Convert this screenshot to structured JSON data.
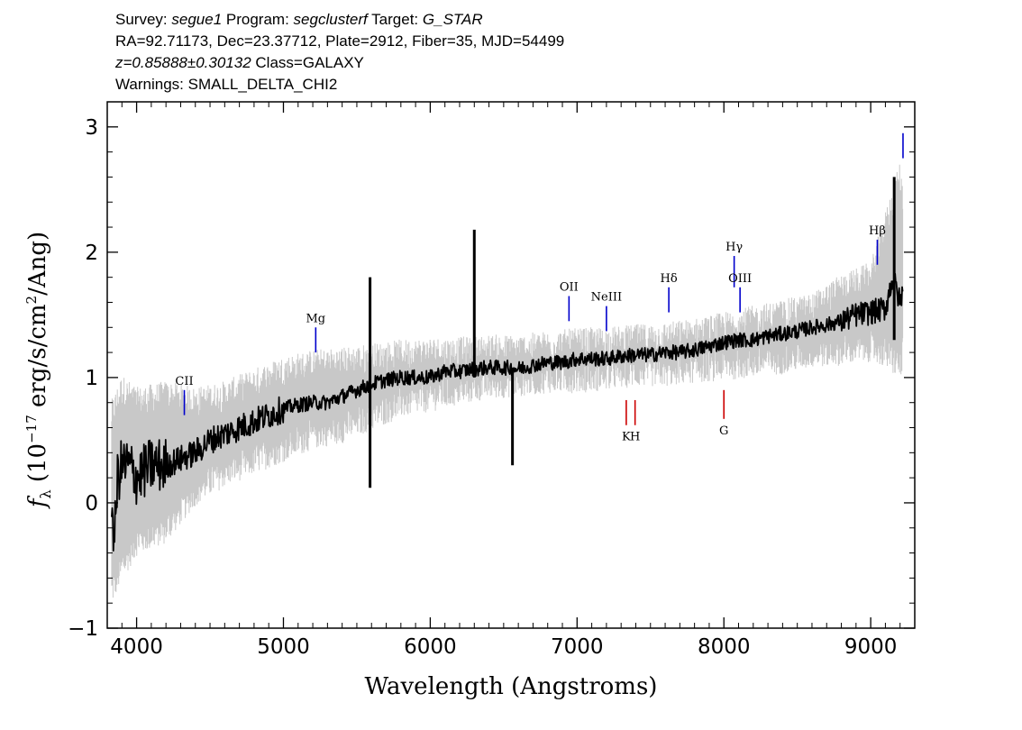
{
  "header": {
    "survey_label": "Survey:",
    "survey": "segue1",
    "program_label": "Program:",
    "program": "segclusterf",
    "target_label": "Target:",
    "target": "G_STAR",
    "line2": "RA=92.71173, Dec=23.37712, Plate=2912, Fiber=35, MJD=54499",
    "z": "z=0.85888±0.30132",
    "class": "Class=GALAXY",
    "warnings": "Warnings: SMALL_DELTA_CHI2"
  },
  "chart_data": {
    "type": "line",
    "xlabel": "Wavelength (Angstroms)",
    "ylabel": "f_λ (10^-17 erg/s/cm^2/Ang)",
    "xlim": [
      3800,
      9300
    ],
    "ylim": [
      -1,
      3.2
    ],
    "x_ticks": [
      4000,
      5000,
      6000,
      7000,
      8000,
      9000
    ],
    "y_ticks": [
      -1,
      0,
      1,
      2,
      3
    ],
    "grid": false,
    "series": [
      {
        "role": "smoothed flux",
        "color": "#000000",
        "x": [
          3830,
          3850,
          3870,
          3900,
          3950,
          4000,
          4100,
          4200,
          4300,
          4400,
          4500,
          4600,
          4700,
          4800,
          4900,
          5000,
          5100,
          5200,
          5300,
          5400,
          5500,
          5600,
          5700,
          5800,
          5900,
          6000,
          6100,
          6200,
          6300,
          6400,
          6500,
          6600,
          6700,
          6800,
          6900,
          7000,
          7100,
          7200,
          7300,
          7400,
          7500,
          7600,
          7700,
          7800,
          7900,
          8000,
          8100,
          8200,
          8300,
          8400,
          8500,
          8600,
          8700,
          8800,
          8900,
          9000,
          9100,
          9150,
          9200,
          9220
        ],
        "y": [
          0.0,
          -0.3,
          0.2,
          0.3,
          0.3,
          0.2,
          0.3,
          0.3,
          0.35,
          0.4,
          0.5,
          0.55,
          0.6,
          0.65,
          0.7,
          0.75,
          0.78,
          0.8,
          0.8,
          0.85,
          0.9,
          0.95,
          0.98,
          1.0,
          1.0,
          1.0,
          1.05,
          1.05,
          1.07,
          1.08,
          1.08,
          1.07,
          1.1,
          1.12,
          1.12,
          1.15,
          1.15,
          1.15,
          1.17,
          1.18,
          1.18,
          1.2,
          1.2,
          1.22,
          1.25,
          1.28,
          1.3,
          1.3,
          1.33,
          1.35,
          1.37,
          1.4,
          1.42,
          1.45,
          1.5,
          1.52,
          1.55,
          1.8,
          1.6,
          1.7
        ]
      },
      {
        "role": "flux uncertainty envelope",
        "color": "#c8c8c8",
        "x": [
          3830,
          3900,
          4000,
          4200,
          4400,
          4600,
          4800,
          5000,
          5200,
          5400,
          5600,
          5800,
          6000,
          6200,
          6400,
          6600,
          6800,
          7000,
          7200,
          7400,
          7600,
          7800,
          8000,
          8200,
          8400,
          8600,
          8800,
          9000,
          9100,
          9200,
          9220
        ],
        "y_low": [
          -0.7,
          -0.5,
          -0.3,
          -0.2,
          0.1,
          0.25,
          0.35,
          0.45,
          0.55,
          0.6,
          0.7,
          0.8,
          0.85,
          0.9,
          0.95,
          0.97,
          1.0,
          1.0,
          1.02,
          1.05,
          1.05,
          1.08,
          1.1,
          1.12,
          1.15,
          1.2,
          1.22,
          1.25,
          1.2,
          1.1,
          1.2
        ],
        "y_high": [
          0.7,
          0.9,
          0.8,
          0.85,
          0.8,
          0.85,
          0.95,
          1.05,
          1.1,
          1.12,
          1.15,
          1.18,
          1.2,
          1.2,
          1.22,
          1.22,
          1.25,
          1.27,
          1.28,
          1.3,
          1.32,
          1.35,
          1.4,
          1.45,
          1.5,
          1.55,
          1.7,
          1.8,
          2.2,
          2.6,
          2.4
        ]
      }
    ],
    "spikes": [
      {
        "x": 5590,
        "y_low": 0.12,
        "y_high": 1.8
      },
      {
        "x": 6300,
        "y_low": 1.0,
        "y_high": 2.18
      },
      {
        "x": 6560,
        "y_low": 0.3,
        "y_high": 1.05
      },
      {
        "x": 9160,
        "y_low": 1.3,
        "y_high": 2.6
      }
    ],
    "emission_lines": [
      {
        "label": "CII",
        "x": 4325,
        "y_low": 0.7,
        "y_high": 0.9,
        "color": "#0000cc"
      },
      {
        "label": "Mg",
        "x": 5220,
        "y_low": 1.2,
        "y_high": 1.4,
        "color": "#0000cc"
      },
      {
        "label": "OII",
        "x": 6945,
        "y_low": 1.45,
        "y_high": 1.65,
        "color": "#0000cc"
      },
      {
        "label": "NeIII",
        "x": 7200,
        "y_low": 1.37,
        "y_high": 1.57,
        "color": "#0000cc"
      },
      {
        "label": "Hδ",
        "x": 7625,
        "y_low": 1.52,
        "y_high": 1.72,
        "color": "#0000cc"
      },
      {
        "label": "Hγ",
        "x": 8070,
        "y_low": 1.72,
        "y_high": 1.97,
        "color": "#0000cc"
      },
      {
        "label": "OIII",
        "x": 8110,
        "y_low": 1.52,
        "y_high": 1.72,
        "color": "#0000cc"
      },
      {
        "label": "Hβ",
        "x": 9045,
        "y_low": 1.9,
        "y_high": 2.1,
        "color": "#0000cc"
      },
      {
        "label": "",
        "x": 9220,
        "y_low": 2.75,
        "y_high": 2.95,
        "color": "#0000cc"
      }
    ],
    "absorption_lines": [
      {
        "label": "K",
        "x": 7335,
        "y_low": 0.62,
        "y_high": 0.82,
        "color": "#cc0000"
      },
      {
        "label": "H",
        "x": 7395,
        "y_low": 0.62,
        "y_high": 0.82,
        "color": "#cc0000"
      },
      {
        "label": "G",
        "x": 8000,
        "y_low": 0.67,
        "y_high": 0.9,
        "color": "#cc0000"
      }
    ]
  }
}
